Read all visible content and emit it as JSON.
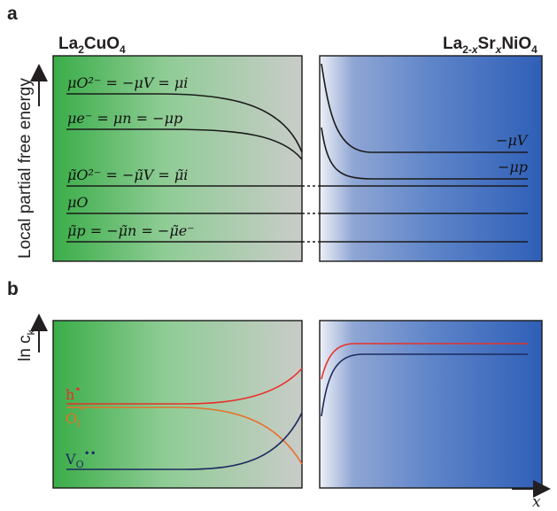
{
  "panel_a": {
    "letter": "a",
    "left_material": {
      "base": "La",
      "sub1": "2",
      "mid": "CuO",
      "sub2": "4"
    },
    "right_material": {
      "base": "La",
      "sub1": "2-",
      "x": "x",
      "mid": "Sr",
      "sub2": "x",
      "end": "NiO",
      "sub3": "4"
    },
    "y_axis_label": "Local partial free energy",
    "equations": {
      "eq1": "μO²⁻ = −μV = μi",
      "eq2": "μe⁻ = μn = −μp",
      "eq3": "μ̃O²⁻ = −μ̃V = μ̃i",
      "eq4": "μO",
      "eq5": "μ̃p = −μ̃n = −μ̃e⁻"
    },
    "right_labels": {
      "mu_v": "−μV",
      "mu_p": "−μp"
    }
  },
  "panel_b": {
    "letter": "b",
    "y_axis_label": "ln c",
    "y_axis_sub": "k",
    "species": {
      "hole": {
        "label": "h",
        "mark": "•",
        "color": "#e8302a"
      },
      "interstitial": {
        "label": "O",
        "sub": "i",
        "mark": "″",
        "color": "#e8702a"
      },
      "vacancy": {
        "label": "V",
        "sub": "O",
        "mark": "••",
        "color": "#1c2a5e"
      }
    },
    "x_axis_label": "x"
  }
}
